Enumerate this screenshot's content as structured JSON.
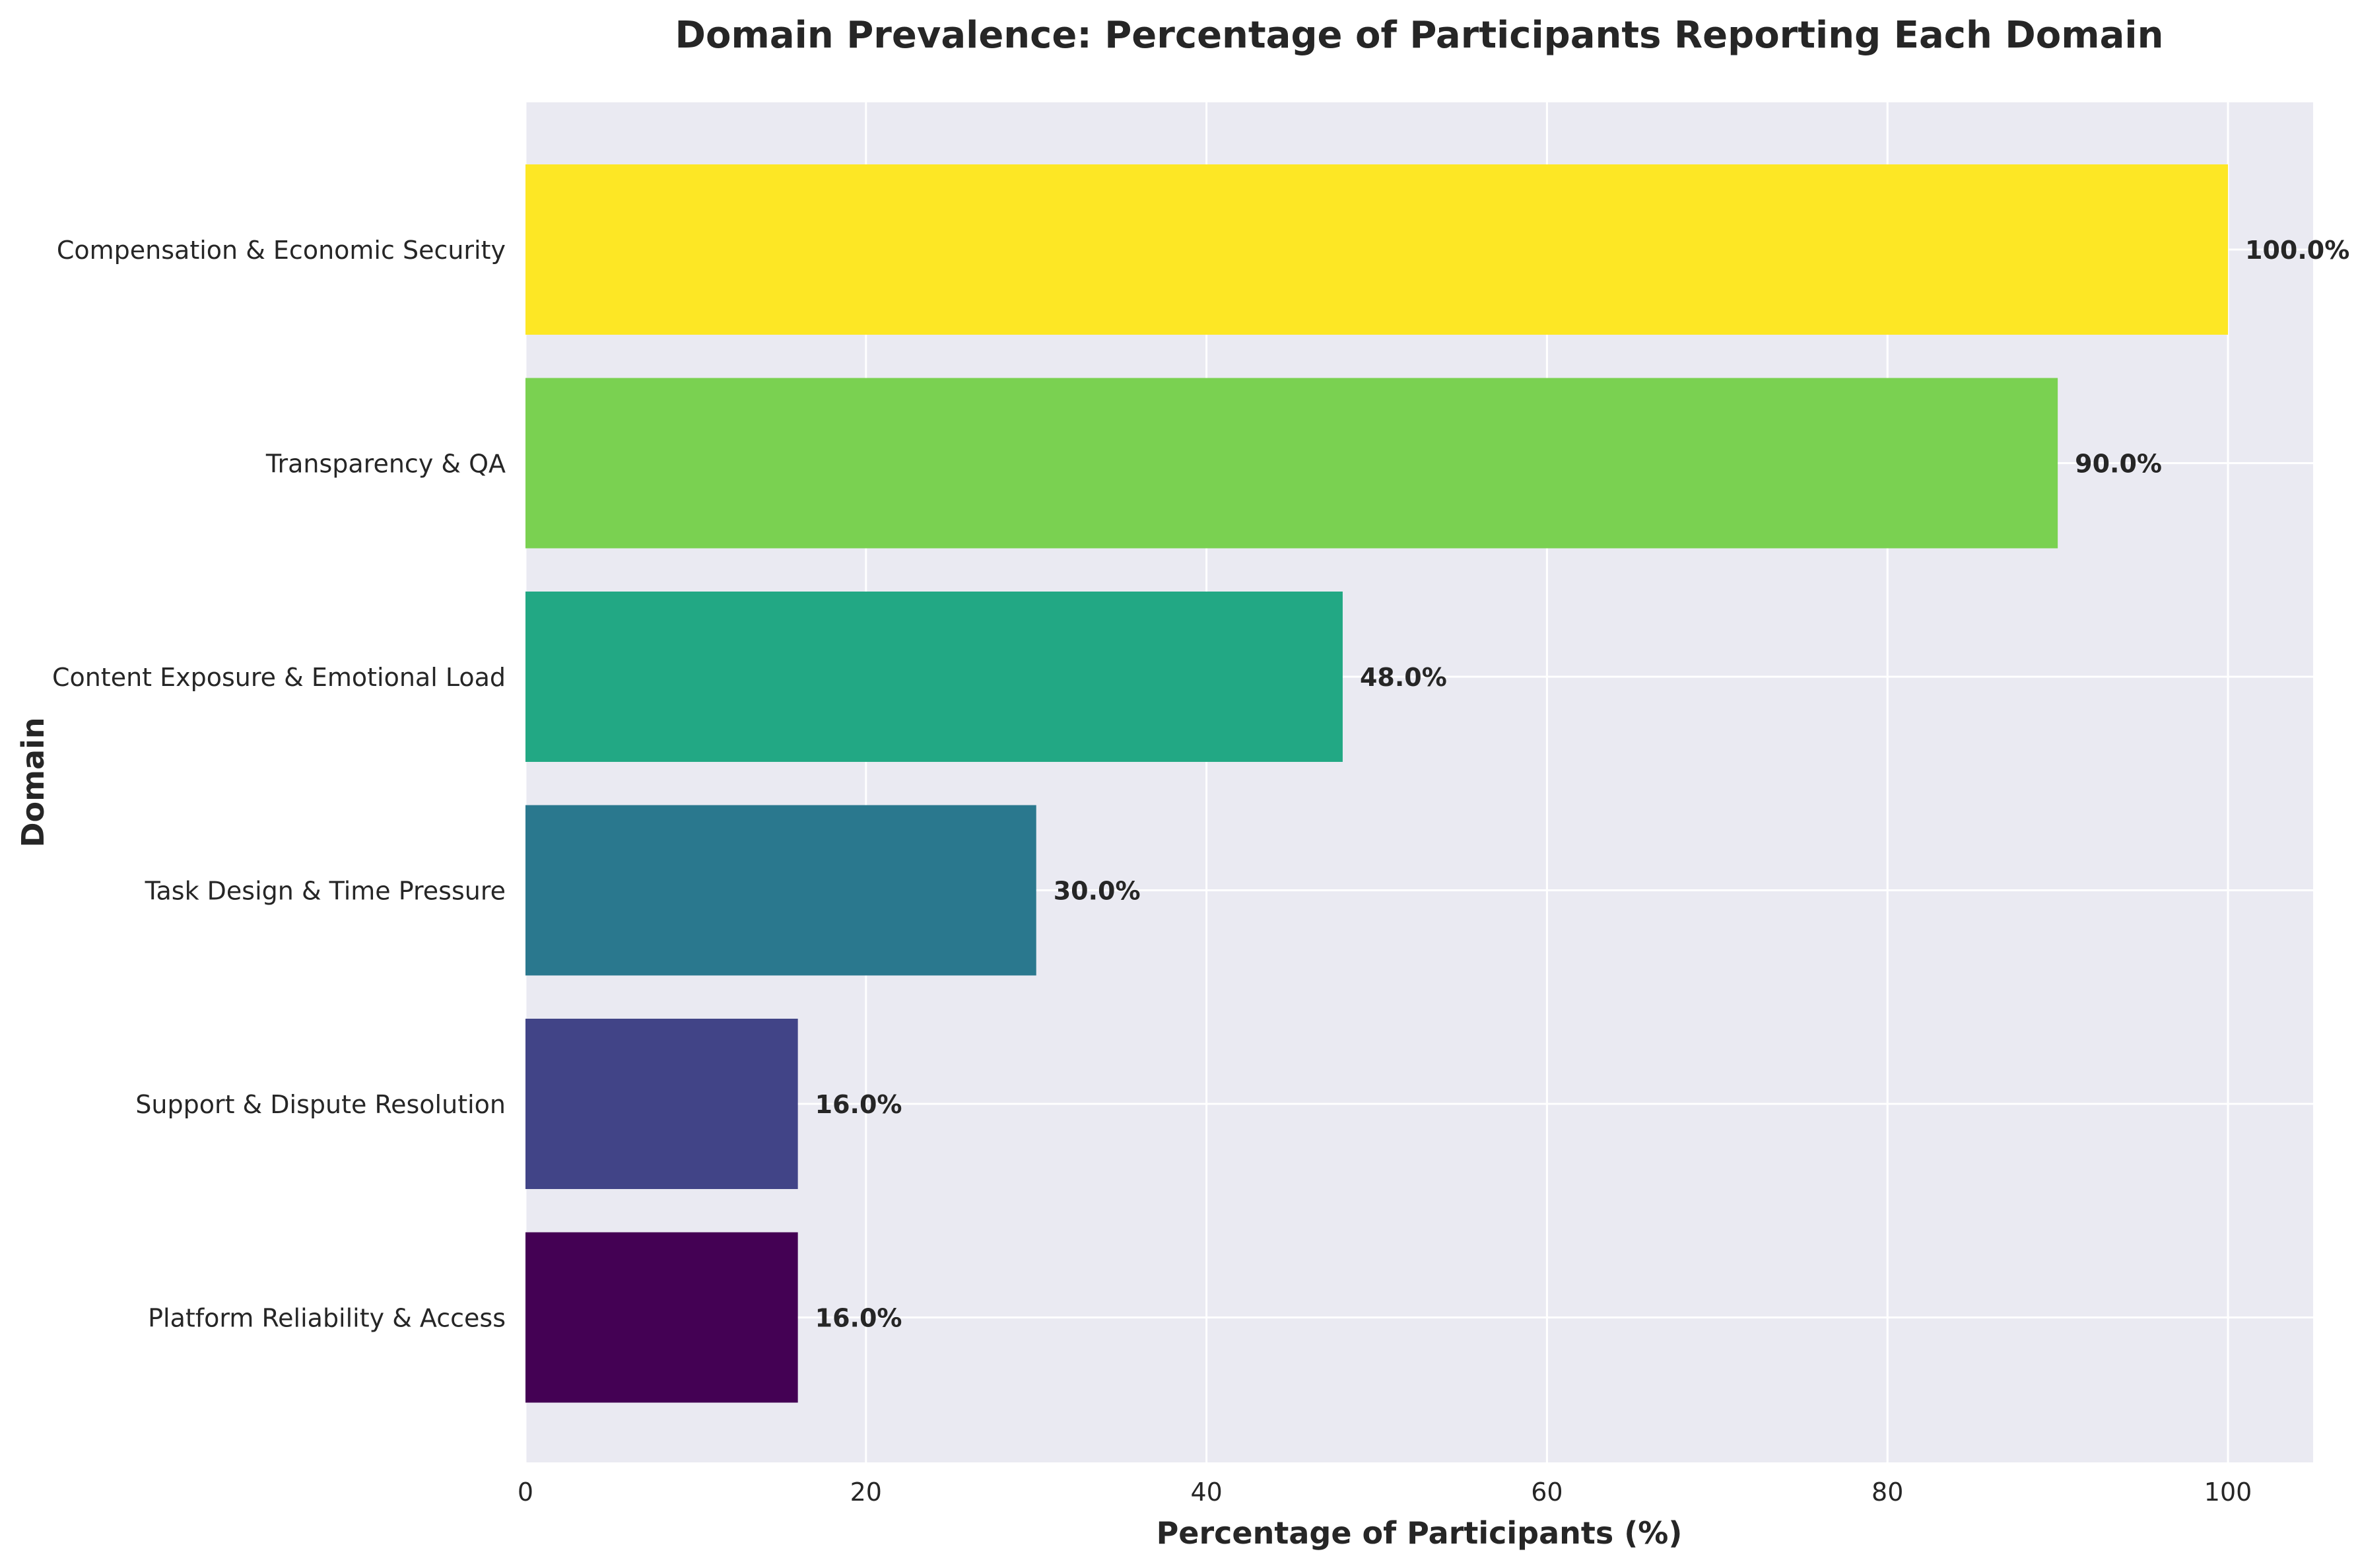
{
  "chart_data": {
    "type": "bar",
    "orientation": "horizontal",
    "title": "Domain Prevalence: Percentage of Participants Reporting Each Domain",
    "xlabel": "Percentage of Participants (%)",
    "ylabel": "Domain",
    "xlim": [
      0,
      105
    ],
    "xticks": [
      0,
      20,
      40,
      60,
      80,
      100
    ],
    "grid": true,
    "categories": [
      "Compensation & Economic Security",
      "Transparency & QA",
      "Content Exposure & Emotional Load",
      "Task Design & Time Pressure",
      "Support & Dispute Resolution",
      "Platform Reliability & Access"
    ],
    "values": [
      100.0,
      90.0,
      48.0,
      30.0,
      16.0,
      16.0
    ],
    "value_labels": [
      "100.0%",
      "90.0%",
      "48.0%",
      "30.0%",
      "16.0%",
      "16.0%"
    ],
    "colors": [
      "#fde725",
      "#7ad151",
      "#22a884",
      "#2a788e",
      "#414487",
      "#440154"
    ],
    "background_color": "#eaeaf2"
  }
}
